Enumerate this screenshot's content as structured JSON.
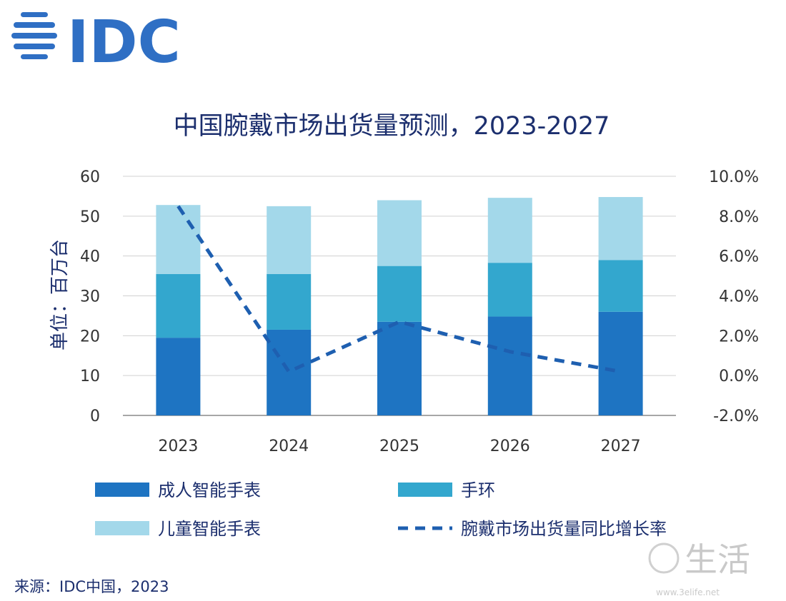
{
  "brand": {
    "logo_text": "IDC",
    "logo_color": "#2f6fc4"
  },
  "source": "来源：IDC中国，2023",
  "watermark": {
    "text": "生活",
    "url_text": "www.3elife.net"
  },
  "chart_data": {
    "type": "bar",
    "title": "中国腕戴市场出货量预测，2023-2027",
    "ylabel": "单位：百万台",
    "categories": [
      "2023",
      "2024",
      "2025",
      "2026",
      "2027"
    ],
    "ylim": [
      0,
      60
    ],
    "y_ticks": [
      "0",
      "10",
      "20",
      "30",
      "40",
      "50",
      "60"
    ],
    "y2lim": [
      -2.0,
      10.0
    ],
    "y2_ticks": [
      "-2.0%",
      "0.0%",
      "2.0%",
      "4.0%",
      "6.0%",
      "8.0%",
      "10.0%"
    ],
    "stacked": true,
    "grid": true,
    "legend_position": "bottom",
    "series": [
      {
        "name": "成人智能手表",
        "kind": "bar",
        "color": "#1e74c2",
        "values": [
          19.5,
          21.5,
          23.5,
          24.8,
          26.0
        ]
      },
      {
        "name": "手环",
        "kind": "bar",
        "color": "#33a7ce",
        "values": [
          16.0,
          14.0,
          14.0,
          13.5,
          13.0
        ]
      },
      {
        "name": "儿童智能手表",
        "kind": "bar",
        "color": "#a3d8ea",
        "values": [
          17.3,
          17.0,
          16.5,
          16.3,
          15.8
        ]
      },
      {
        "name": "腕戴市场出货量同比增长率",
        "kind": "line",
        "axis": "right",
        "color": "#1e5fb0",
        "dashed": true,
        "values": [
          8.5,
          0.2,
          2.7,
          1.2,
          0.2
        ]
      }
    ]
  }
}
